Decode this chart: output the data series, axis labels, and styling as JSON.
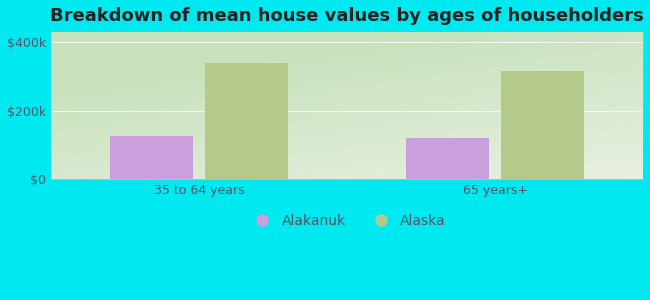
{
  "title": "Breakdown of mean house values by ages of householders",
  "categories": [
    "35 to 64 years",
    "65 years+"
  ],
  "alakanuk_values": [
    125000,
    120000
  ],
  "alaska_values": [
    340000,
    315000
  ],
  "alakanuk_color": "#c9a0dc",
  "alaska_color": "#b5c98a",
  "background_color": "#00e8f0",
  "yticks": [
    0,
    200000,
    400000
  ],
  "ytick_labels": [
    "$0",
    "$200k",
    "$400k"
  ],
  "ylim": [
    0,
    430000
  ],
  "bar_width": 0.28,
  "legend_labels": [
    "Alakanuk",
    "Alaska"
  ],
  "title_fontsize": 13,
  "tick_fontsize": 9,
  "legend_fontsize": 10,
  "text_color": "#555566"
}
